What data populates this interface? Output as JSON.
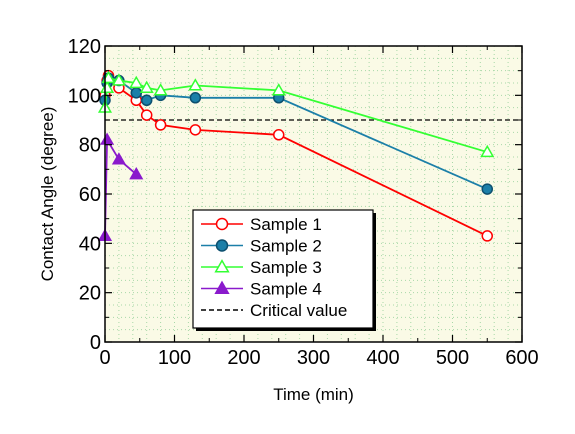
{
  "chart_data": {
    "type": "line",
    "title": "",
    "xlabel": "Time (min)",
    "ylabel": "Contact Angle (degree)",
    "xlim": [
      0,
      600
    ],
    "ylim": [
      0,
      120
    ],
    "xticks": [
      0,
      100,
      200,
      300,
      400,
      500,
      600
    ],
    "yticks": [
      0,
      20,
      40,
      60,
      80,
      100,
      120
    ],
    "xtick_labels": [
      "0",
      "100",
      "200",
      "300",
      "400",
      "500",
      "600"
    ],
    "ytick_labels": [
      "0",
      "20",
      "40",
      "60",
      "80",
      "100",
      "120"
    ],
    "plot_background": "#fafae6",
    "grid": "dotted",
    "legend_position": "lower-center",
    "series": [
      {
        "name": "Sample 1",
        "color": "#ff0000",
        "marker": "circle-open",
        "points": [
          [
            0,
            100
          ],
          [
            3,
            106
          ],
          [
            5,
            108
          ],
          [
            20,
            103
          ],
          [
            45,
            98
          ],
          [
            60,
            92
          ],
          [
            80,
            88
          ],
          [
            130,
            86
          ],
          [
            250,
            84
          ],
          [
            550,
            43
          ]
        ]
      },
      {
        "name": "Sample 2",
        "color": "#1b7fa8",
        "marker": "circle-filled",
        "points": [
          [
            0,
            98
          ],
          [
            3,
            105
          ],
          [
            5,
            107
          ],
          [
            20,
            106
          ],
          [
            45,
            101
          ],
          [
            60,
            98
          ],
          [
            80,
            100
          ],
          [
            130,
            99
          ],
          [
            250,
            99
          ],
          [
            550,
            62
          ]
        ]
      },
      {
        "name": "Sample 3",
        "color": "#33ff33",
        "marker": "triangle-open",
        "points": [
          [
            0,
            95
          ],
          [
            3,
            103
          ],
          [
            5,
            107
          ],
          [
            20,
            106
          ],
          [
            45,
            105
          ],
          [
            60,
            103
          ],
          [
            80,
            102
          ],
          [
            130,
            104
          ],
          [
            250,
            102
          ],
          [
            550,
            77
          ]
        ]
      },
      {
        "name": "Sample 4",
        "color": "#8a1acc",
        "marker": "triangle-filled",
        "points": [
          [
            0,
            43
          ],
          [
            3,
            82
          ],
          [
            20,
            74
          ],
          [
            45,
            68
          ]
        ]
      }
    ],
    "reference_lines": [
      {
        "name": "Critical value",
        "y": 90,
        "style": "dashed",
        "color": "#000000"
      }
    ]
  }
}
